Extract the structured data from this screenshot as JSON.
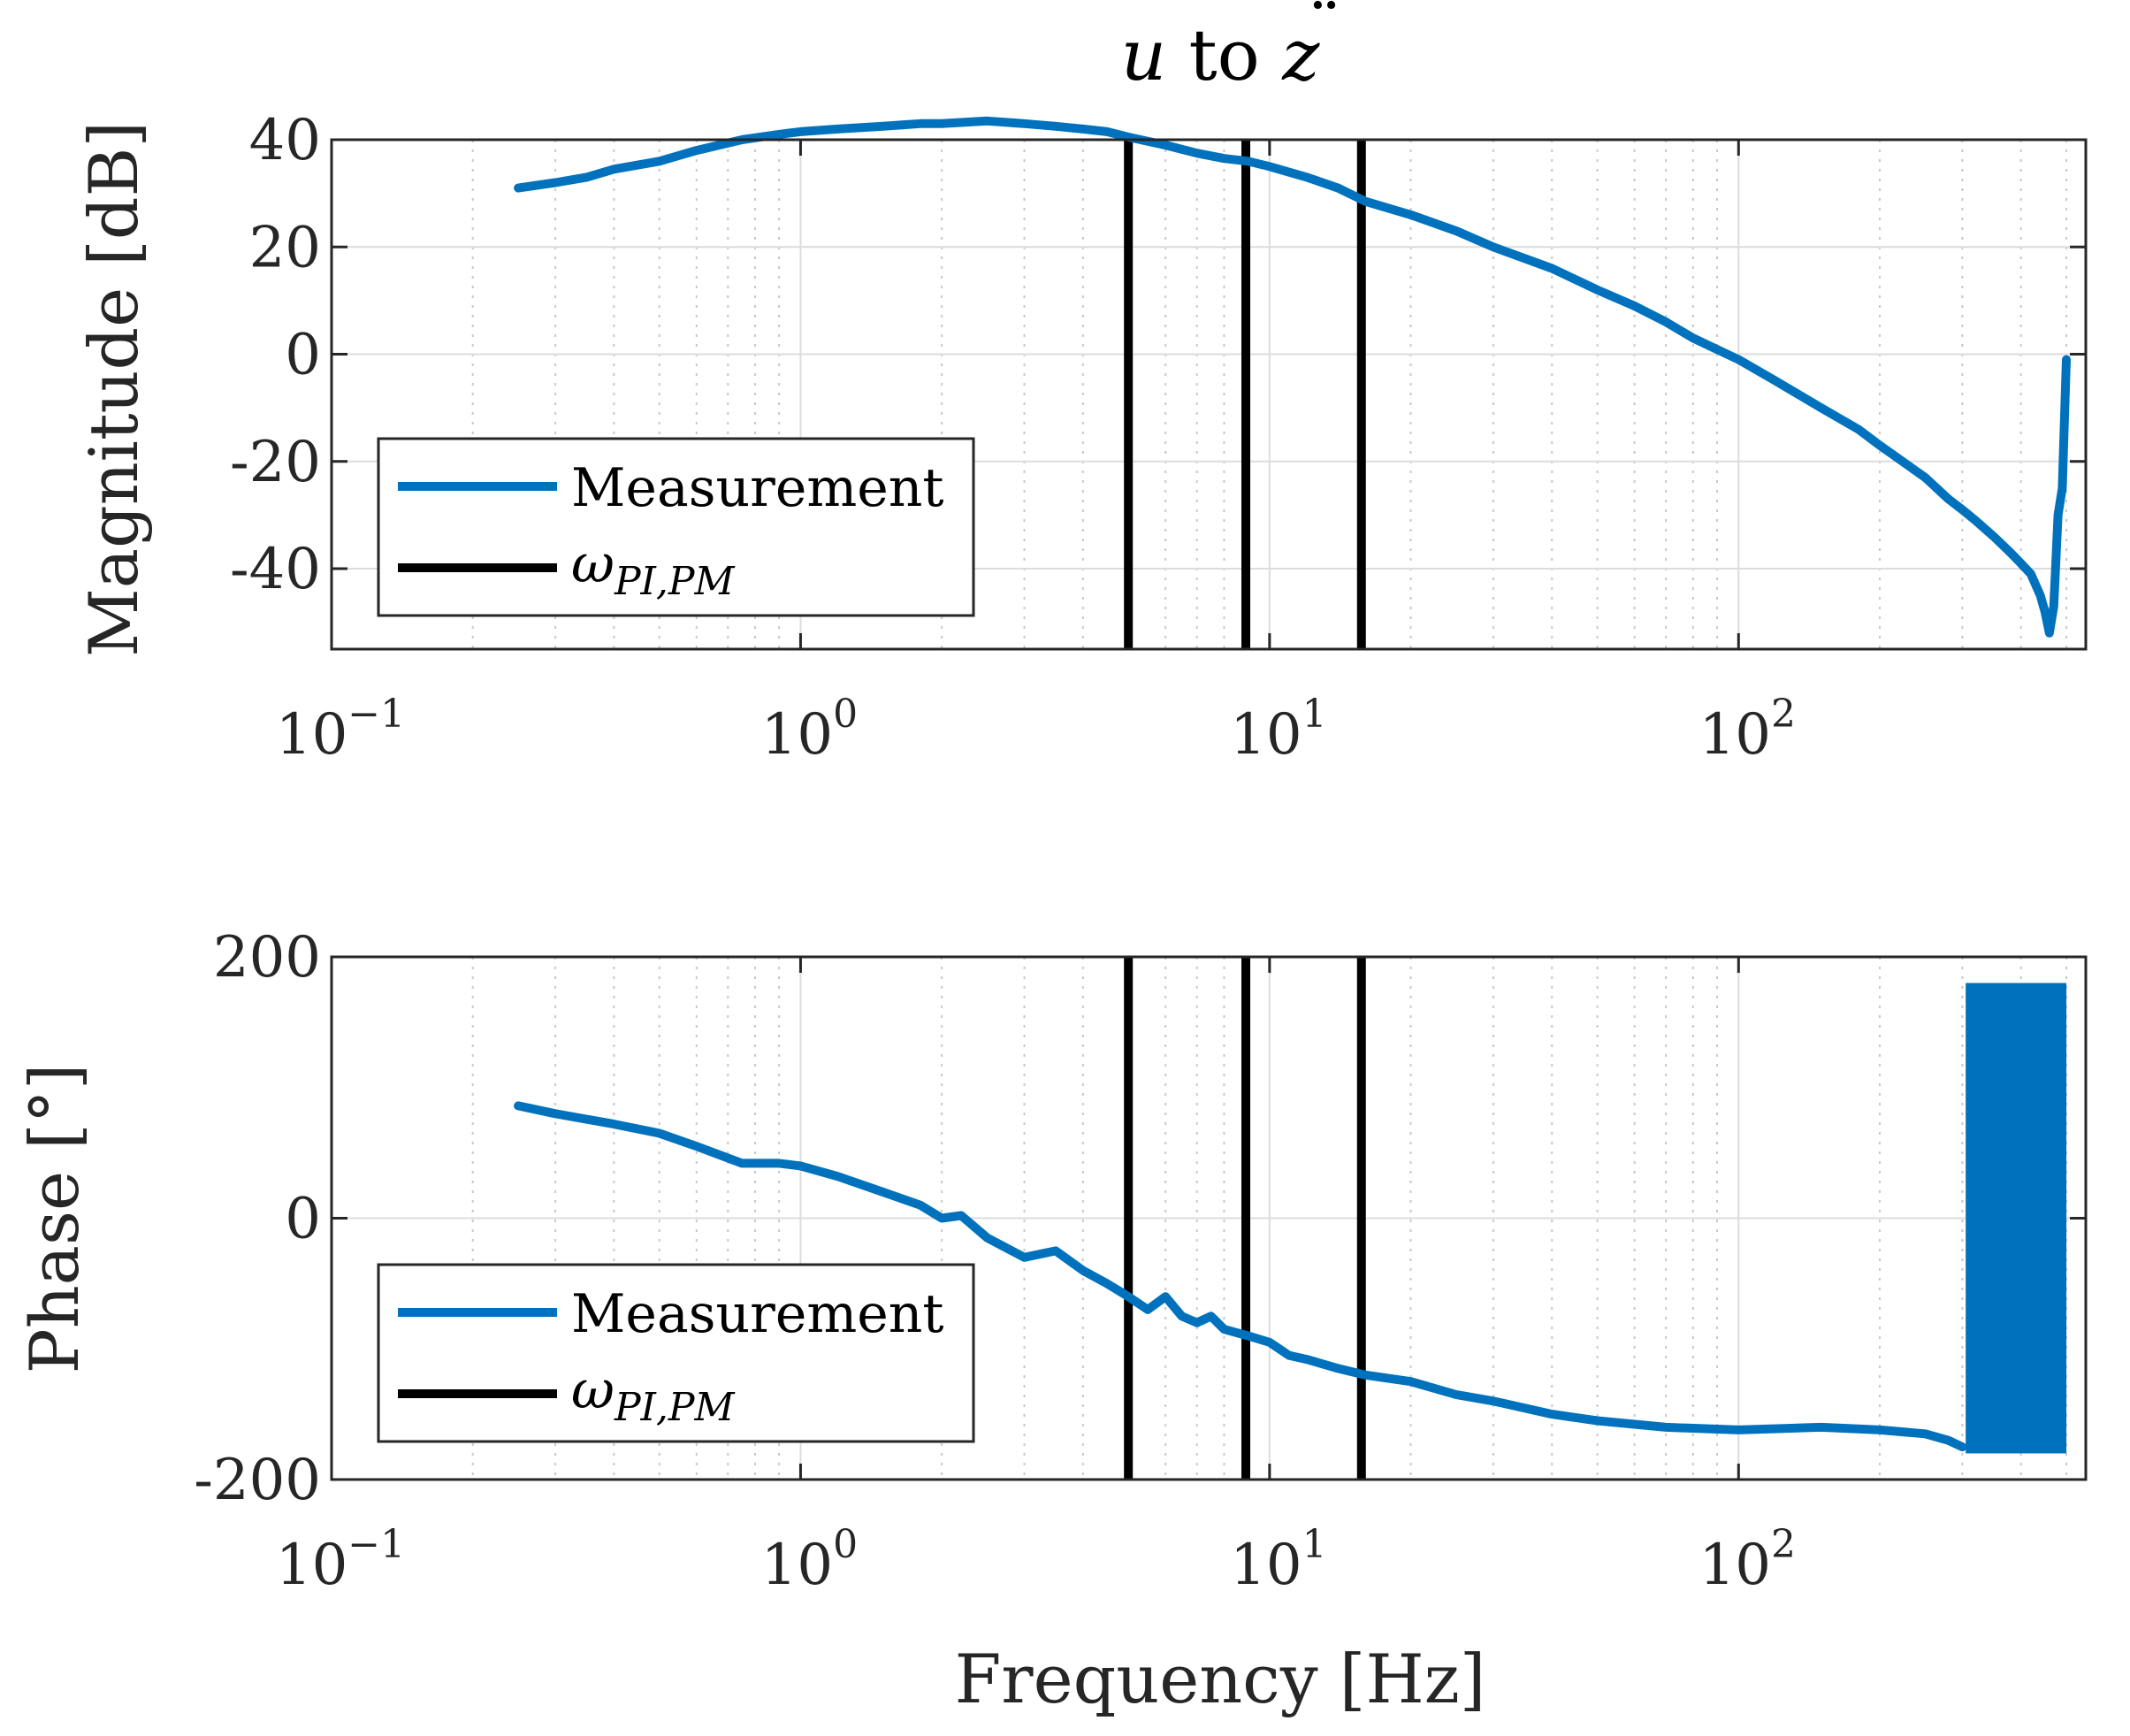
{
  "colors": {
    "measurement": "#0072BD",
    "marker": "#000000",
    "grid_major": "#dcdcdc",
    "grid_minor": "#c8c8c8",
    "axes": "#262626"
  },
  "chart_data": [
    {
      "type": "line",
      "title": {
        "base": "u",
        "middle": " to ",
        "symbol": "z",
        "accent": "¨"
      },
      "xlabel": "",
      "ylabel": "Magnitude [dB]",
      "xscale": "log",
      "xlim": [
        0.1,
        550
      ],
      "ylim": [
        -55,
        40
      ],
      "yticks": [
        40,
        20,
        0,
        -20,
        -40
      ],
      "ytick_labels": [
        "40",
        "20",
        "0",
        "-20",
        "-40"
      ],
      "xticks": [
        0.1,
        1,
        10,
        100
      ],
      "xtick_labels": [
        {
          "base": "10",
          "exp": "−1"
        },
        {
          "base": "10",
          "exp": "0"
        },
        {
          "base": "10",
          "exp": "1"
        },
        {
          "base": "10",
          "exp": "2"
        }
      ],
      "grid": true,
      "legend_position": "lower-left",
      "series": [
        {
          "name": "Measurement",
          "x": [
            0.25,
            0.3,
            0.35,
            0.4,
            0.5,
            0.6,
            0.75,
            0.9,
            1.0,
            1.2,
            1.5,
            1.8,
            2.0,
            2.5,
            3.0,
            3.5,
            4.0,
            4.5,
            5.0,
            6.0,
            7.0,
            8.0,
            9.0,
            10,
            12,
            14,
            16,
            20,
            25,
            30,
            40,
            50,
            60,
            70,
            80,
            100,
            120,
            150,
            180,
            200,
            250,
            280,
            300,
            320,
            350,
            380,
            400,
            420,
            440,
            450,
            460,
            470,
            480,
            490,
            500
          ],
          "y": [
            31,
            32,
            33,
            34.5,
            36,
            38,
            40,
            41,
            41.5,
            42,
            42.5,
            43,
            43,
            43.5,
            43,
            42.5,
            42,
            41.5,
            40.5,
            39,
            37.5,
            36.5,
            36,
            35,
            33,
            31,
            28.5,
            26,
            23,
            20,
            16,
            12,
            9,
            6,
            3,
            -1,
            -5,
            -10,
            -14,
            -17,
            -23,
            -27,
            -29,
            -31,
            -34,
            -37,
            -39,
            -41,
            -45,
            -48,
            -52,
            -47,
            -30,
            -25,
            -1
          ]
        }
      ],
      "markers": {
        "name": "ωPI,PM",
        "x": [
          5,
          8.9,
          15.7
        ]
      },
      "legend": {
        "entries": [
          "Measurement",
          "ωPI,PM"
        ],
        "symbol_base": "ω",
        "symbol_sub": "PI,PM"
      }
    },
    {
      "type": "line",
      "title": "",
      "xlabel": "Frequency [Hz]",
      "ylabel": "Phase [°]",
      "xscale": "log",
      "xlim": [
        0.1,
        550
      ],
      "ylim": [
        -200,
        200
      ],
      "yticks": [
        200,
        0,
        -200
      ],
      "ytick_labels": [
        "200",
        "0",
        "-200"
      ],
      "xticks": [
        0.1,
        1,
        10,
        100
      ],
      "xtick_labels": [
        {
          "base": "10",
          "exp": "−1"
        },
        {
          "base": "10",
          "exp": "0"
        },
        {
          "base": "10",
          "exp": "1"
        },
        {
          "base": "10",
          "exp": "2"
        }
      ],
      "grid": true,
      "legend_position": "lower-left",
      "series": [
        {
          "name": "Measurement",
          "x": [
            0.25,
            0.3,
            0.4,
            0.5,
            0.6,
            0.75,
            0.9,
            1.0,
            1.2,
            1.5,
            1.8,
            2.0,
            2.2,
            2.5,
            3.0,
            3.5,
            4.0,
            4.5,
            5.0,
            5.5,
            6.0,
            6.5,
            7.0,
            7.5,
            8.0,
            9.0,
            10,
            11,
            12,
            14,
            16,
            20,
            25,
            30,
            40,
            50,
            70,
            100,
            150,
            200,
            250,
            280,
            300
          ],
          "y": [
            86,
            80,
            72,
            65,
            55,
            42,
            42,
            40,
            32,
            20,
            10,
            0,
            2,
            -15,
            -30,
            -25,
            -40,
            -50,
            -60,
            -70,
            -60,
            -75,
            -80,
            -75,
            -85,
            -90,
            -95,
            -105,
            -108,
            -115,
            -120,
            -125,
            -135,
            -140,
            -150,
            -155,
            -160,
            -162,
            -160,
            -162,
            -165,
            -170,
            -175
          ]
        }
      ],
      "noise_band": {
        "x_start": 305,
        "x_end": 500,
        "y_min": -180,
        "y_max": 180
      },
      "markers": {
        "name": "ωPI,PM",
        "x": [
          5,
          8.9,
          15.7
        ]
      },
      "legend": {
        "entries": [
          "Measurement",
          "ωPI,PM"
        ],
        "symbol_base": "ω",
        "symbol_sub": "PI,PM"
      }
    }
  ]
}
